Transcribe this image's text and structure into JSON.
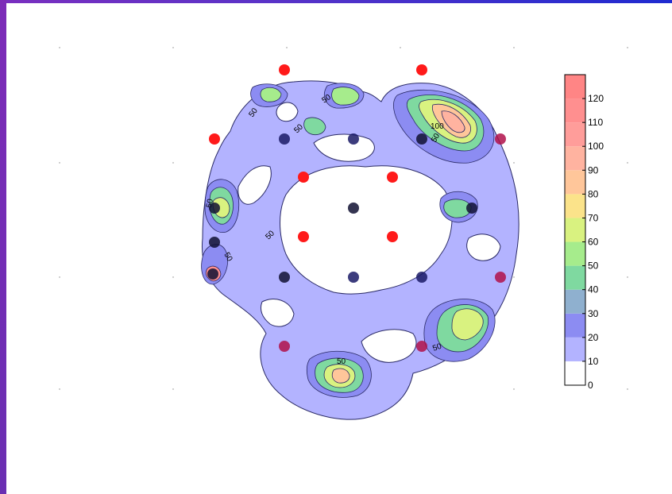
{
  "chart_data": {
    "type": "heatmap",
    "title": "",
    "xlabel": "",
    "ylabel": "",
    "colorbar": {
      "range": [
        0,
        130
      ],
      "levels": [
        0,
        10,
        20,
        30,
        40,
        50,
        60,
        70,
        80,
        90,
        100,
        110,
        120,
        130
      ],
      "tick_labels": [
        "0",
        "10",
        "20",
        "30",
        "40",
        "50",
        "60",
        "70",
        "80",
        "90",
        "100",
        "110",
        "120"
      ],
      "band_colors": [
        "#ffffff",
        "#b3b3ff",
        "#8c8cf2",
        "#8fb0cf",
        "#7fd9a0",
        "#a6ec8c",
        "#d9f280",
        "#fbe38a",
        "#ffc69a",
        "#ffb3a0",
        "#ff9d9a",
        "#ff8f8f",
        "#ff8585"
      ]
    },
    "contour_labels": [
      "50",
      "50",
      "50",
      "100",
      "50",
      "50",
      "50",
      "50",
      "50",
      "50"
    ],
    "grid": "dotted",
    "legend": "colorbar at right",
    "marker_colors": {
      "red": "#ff1a1a",
      "dark": "#111133",
      "navy": "#1a1a66",
      "crimson": "#b0104a"
    }
  }
}
